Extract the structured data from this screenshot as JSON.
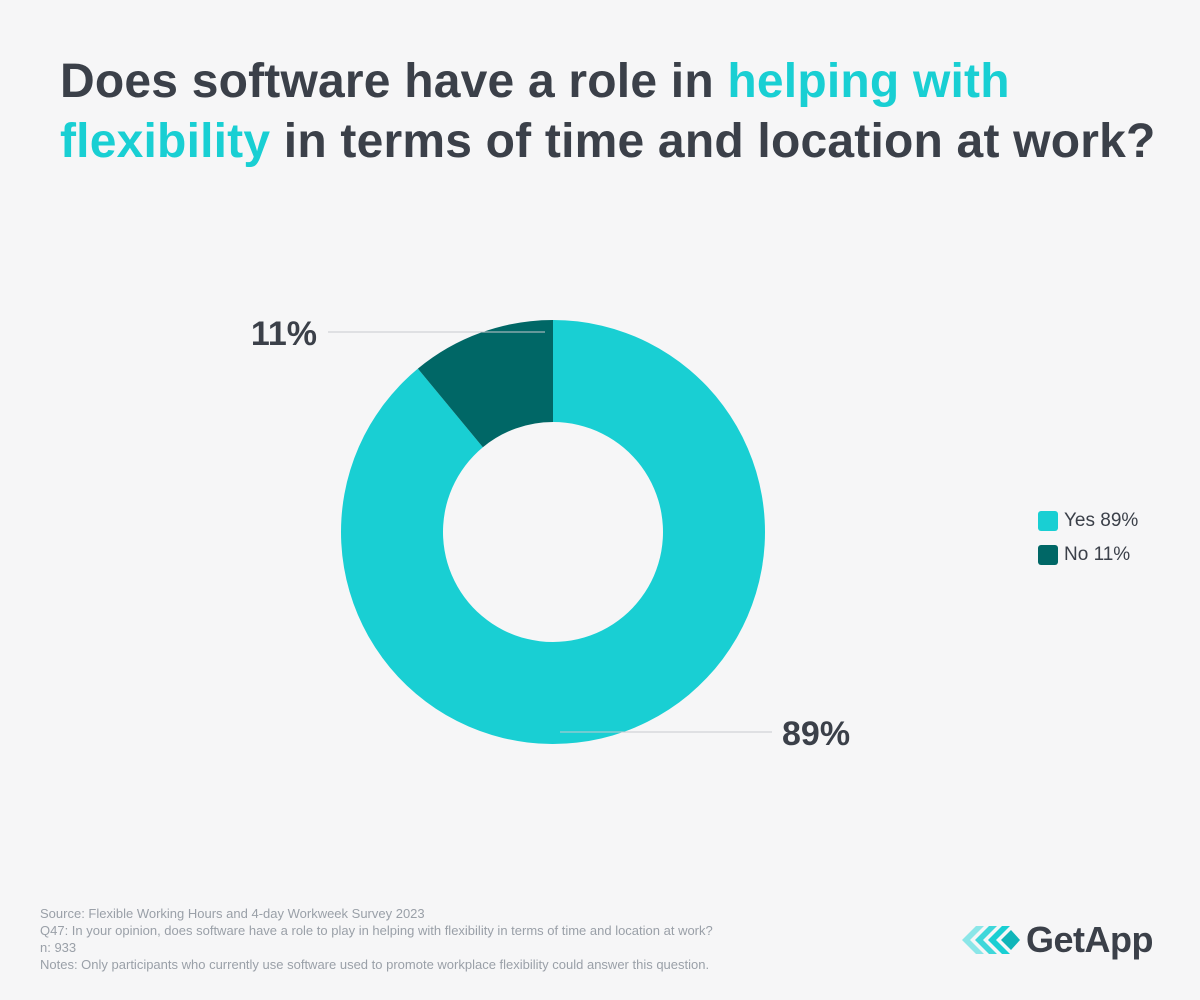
{
  "title": {
    "part1": "Does software have a role in ",
    "highlight1": "helping with",
    "highlight2": "flexibility",
    "part2": " in terms of time and location at work?"
  },
  "colors": {
    "yes": "#19cfd3",
    "no": "#006766",
    "text": "#3b4049",
    "leader": "#c8cacf",
    "background": "#f6f6f7"
  },
  "chart_data": {
    "type": "pie",
    "variant": "donut",
    "title": "Does software have a role in helping with flexibility in terms of time and location at work?",
    "categories": [
      "Yes",
      "No"
    ],
    "values": [
      89,
      11
    ],
    "data_labels": [
      "89%",
      "11%"
    ],
    "legend": [
      "Yes 89%",
      "No 11%"
    ],
    "legend_position": "right",
    "start": "top",
    "direction": "clockwise"
  },
  "footnotes": {
    "source": "Source: Flexible Working Hours and 4-day Workweek Survey 2023",
    "question": "Q47: In your opinion, does software have a role to play in helping with flexibility in terms of time and location at work?",
    "n": "n: 933",
    "notes": "Notes: Only participants who currently use software used to promote workplace flexibility could answer this question."
  },
  "logo": {
    "name": "GetApp",
    "icon": "getapp-chevrons-icon"
  }
}
